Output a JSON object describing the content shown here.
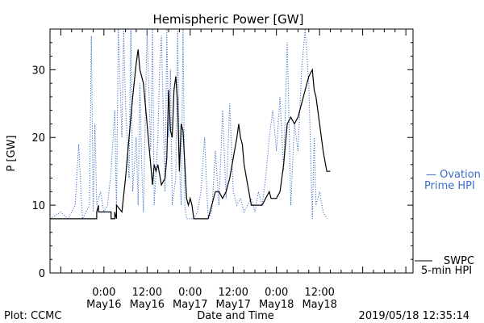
{
  "chart_data": {
    "type": "line",
    "title": "Hemispheric Power [GW]",
    "xlabel": "Date and Time",
    "ylabel": "P [GW]",
    "ylim": [
      0,
      36
    ],
    "yticks": [
      0,
      10,
      20,
      30
    ],
    "xlim_hours": [
      -15,
      86
    ],
    "xticks": [
      {
        "hour": 0,
        "time": "0:00",
        "date": "May16"
      },
      {
        "hour": 12,
        "time": "12:00",
        "date": "May16"
      },
      {
        "hour": 24,
        "time": "0:00",
        "date": "May17"
      },
      {
        "hour": 36,
        "time": "12:00",
        "date": "May17"
      },
      {
        "hour": 48,
        "time": "0:00",
        "date": "May18"
      },
      {
        "hour": 60,
        "time": "12:00",
        "date": "May18"
      }
    ],
    "grid": false,
    "series": [
      {
        "name": "SWPC 5-min HPI",
        "style": "solid",
        "color": "#000000",
        "x": [
          -15,
          -2,
          -2,
          -1.5,
          -1.5,
          2,
          2,
          3,
          3,
          3.5,
          3.5,
          5,
          6,
          7,
          8,
          9,
          9.5,
          10,
          11,
          12,
          13,
          13.5,
          14,
          14.5,
          15,
          16,
          17,
          17.5,
          18,
          18.5,
          19,
          19.5,
          20,
          20.5,
          21,
          21.5,
          22,
          23,
          23.5,
          24,
          24.5,
          25,
          26,
          28,
          29,
          30,
          31,
          32,
          33,
          34,
          35,
          36,
          37,
          37.5,
          38,
          38.5,
          39,
          40,
          41,
          42,
          43,
          44,
          45,
          46,
          46.5,
          47,
          48,
          49,
          50,
          51,
          52,
          53,
          54,
          55,
          56,
          57,
          58,
          58.5,
          59,
          60,
          61,
          62,
          63
        ],
        "y": [
          8,
          8,
          9,
          10,
          9,
          9,
          8,
          8,
          9,
          8,
          10,
          9,
          14,
          20,
          26,
          31,
          33,
          30,
          28,
          22,
          16,
          13,
          16,
          15,
          16,
          13,
          14,
          17,
          27,
          21,
          20,
          27,
          29,
          25,
          15,
          22,
          21,
          11,
          10,
          11,
          10,
          8,
          8,
          8,
          8,
          10,
          12,
          12,
          11,
          12,
          14,
          17,
          20,
          22,
          20,
          19,
          16,
          13,
          10,
          10,
          10,
          10,
          11,
          12,
          11,
          11,
          11,
          12,
          16,
          22,
          23,
          22,
          23,
          25,
          27,
          29,
          30,
          27,
          26,
          22,
          18,
          15,
          15
        ]
      },
      {
        "name": "Ovation Prime HPI",
        "style": "dotted",
        "color": "#3a6fc8",
        "x": [
          -15,
          -12,
          -10,
          -8,
          -7,
          -6,
          -5,
          -4,
          -3.5,
          -3,
          -2.5,
          -2,
          -1,
          0,
          1,
          2,
          3,
          3.5,
          4,
          5,
          5.5,
          6,
          7,
          7.5,
          8,
          9,
          9.5,
          10,
          10.5,
          11,
          12,
          13,
          13.5,
          14,
          15,
          15.5,
          16,
          17,
          17.5,
          18,
          18.5,
          19,
          20,
          20.5,
          21,
          21.5,
          22,
          22.5,
          23,
          24,
          25,
          26,
          27,
          28,
          29,
          30,
          31,
          32,
          33,
          34,
          35,
          36,
          37,
          38,
          39,
          40,
          41,
          42,
          43,
          44,
          45,
          46,
          47,
          48,
          49,
          50,
          51,
          52,
          53,
          54,
          55,
          56,
          57,
          58,
          58.5,
          59,
          60,
          61,
          62
        ],
        "y": [
          8,
          9,
          8,
          10,
          19,
          8,
          9,
          10,
          35,
          9,
          22,
          10,
          12,
          9,
          10,
          15,
          24,
          9,
          36,
          20,
          36,
          25,
          14,
          36,
          12,
          20,
          10,
          28,
          16,
          9,
          36,
          18,
          36,
          10,
          20,
          30,
          35,
          12,
          36,
          20,
          30,
          10,
          14,
          36,
          16,
          10,
          36,
          10,
          8,
          8,
          8,
          9,
          12,
          20,
          8,
          9,
          18,
          10,
          24,
          11,
          25,
          12,
          10,
          11,
          9,
          10,
          11,
          9,
          12,
          10,
          14,
          20,
          24,
          18,
          26,
          15,
          34,
          10,
          22,
          18,
          30,
          36,
          28,
          8,
          20,
          10,
          12,
          9,
          8
        ]
      }
    ],
    "legend": [
      {
        "label_lines": [
          "— Ovation",
          "Prime HPI"
        ],
        "color": "#3a6fc8",
        "placement": "right"
      },
      {
        "label_lines": [
          "SWPC",
          "5-min HPI"
        ],
        "color": "#000000",
        "placement": "bottom-right"
      }
    ],
    "footer_left": "Plot: CCMC",
    "footer_right": "2019/05/18 12:35:14"
  }
}
